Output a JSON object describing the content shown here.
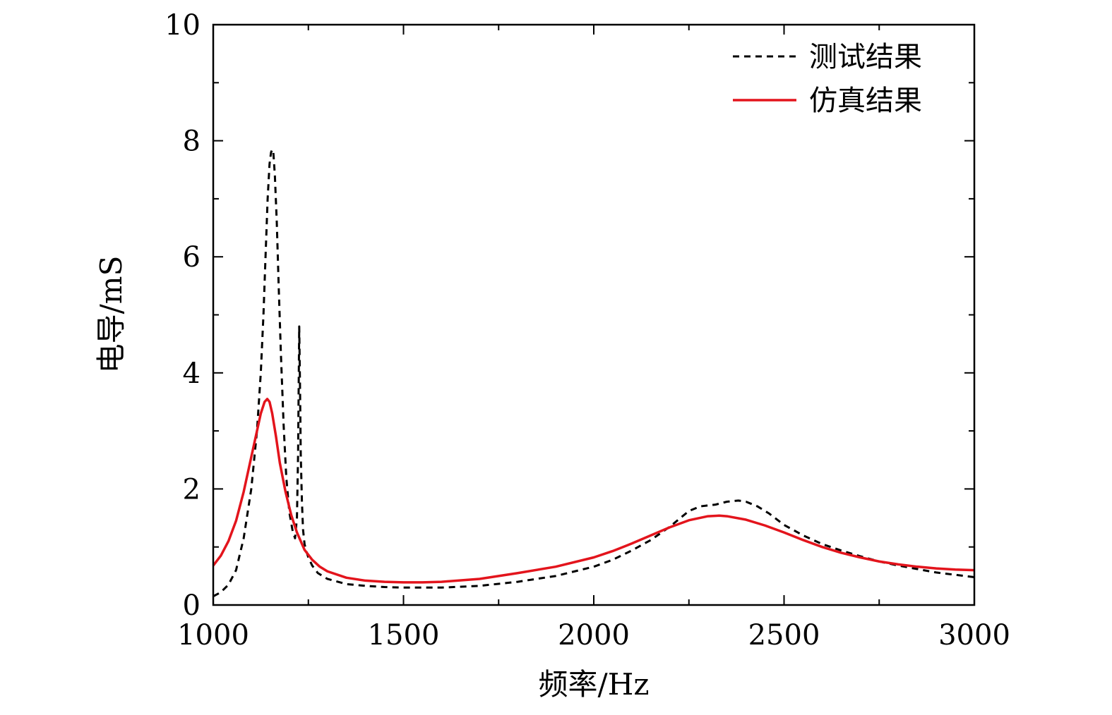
{
  "chart_data": {
    "type": "line",
    "title": "",
    "xlabel": "频率/Hz",
    "ylabel": "电导/mS",
    "xlim": [
      1000,
      3000
    ],
    "ylim": [
      0,
      10
    ],
    "grid": false,
    "legend_position": "top-right",
    "xticks": [
      1000,
      1500,
      2000,
      2500,
      3000
    ],
    "xtick_labels": [
      "1000",
      "1500",
      "2000",
      "2500",
      "3000"
    ],
    "xminor_ticks": [
      1250,
      1750,
      2250,
      2750
    ],
    "yticks": [
      0,
      2,
      4,
      6,
      8,
      10
    ],
    "ytick_labels": [
      "0",
      "2",
      "4",
      "6",
      "8",
      "10"
    ],
    "yminor_ticks": [
      1,
      3,
      5,
      7,
      9
    ],
    "series": [
      {
        "name": "测试结果",
        "style": "dashed",
        "color": "#000000",
        "x": [
          1000,
          1020,
          1040,
          1060,
          1080,
          1100,
          1115,
          1125,
          1132,
          1138,
          1143,
          1148,
          1152,
          1155,
          1158,
          1162,
          1167,
          1172,
          1178,
          1185,
          1192,
          1200,
          1208,
          1215,
          1220,
          1223,
          1226,
          1228,
          1230,
          1233,
          1236,
          1240,
          1245,
          1250,
          1260,
          1275,
          1300,
          1350,
          1400,
          1450,
          1500,
          1550,
          1600,
          1700,
          1800,
          1900,
          2000,
          2050,
          2100,
          2150,
          2200,
          2250,
          2280,
          2320,
          2350,
          2380,
          2400,
          2430,
          2460,
          2500,
          2550,
          2600,
          2650,
          2700,
          2750,
          2800,
          2850,
          2900,
          2950,
          3000
        ],
        "y": [
          0.15,
          0.22,
          0.35,
          0.6,
          1.15,
          2.0,
          3.0,
          4.0,
          5.0,
          6.1,
          7.0,
          7.6,
          7.8,
          7.85,
          7.8,
          7.4,
          6.6,
          5.5,
          4.3,
          3.1,
          2.2,
          1.6,
          1.3,
          1.15,
          1.5,
          2.6,
          4.8,
          3.8,
          2.6,
          1.8,
          1.3,
          1.05,
          0.92,
          0.82,
          0.68,
          0.55,
          0.45,
          0.36,
          0.33,
          0.31,
          0.3,
          0.3,
          0.3,
          0.33,
          0.4,
          0.5,
          0.66,
          0.78,
          0.94,
          1.12,
          1.35,
          1.62,
          1.7,
          1.73,
          1.78,
          1.8,
          1.78,
          1.7,
          1.58,
          1.38,
          1.2,
          1.05,
          0.94,
          0.84,
          0.75,
          0.68,
          0.62,
          0.56,
          0.52,
          0.48
        ]
      },
      {
        "name": "仿真结果",
        "style": "solid",
        "color": "#e3141c",
        "x": [
          1000,
          1020,
          1040,
          1060,
          1080,
          1100,
          1115,
          1125,
          1135,
          1142,
          1148,
          1155,
          1165,
          1175,
          1190,
          1205,
          1220,
          1240,
          1260,
          1280,
          1300,
          1350,
          1400,
          1450,
          1500,
          1550,
          1600,
          1700,
          1800,
          1900,
          2000,
          2050,
          2100,
          2150,
          2200,
          2250,
          2300,
          2330,
          2350,
          2400,
          2450,
          2500,
          2550,
          2600,
          2650,
          2700,
          2750,
          2800,
          2850,
          2900,
          2950,
          3000
        ],
        "y": [
          0.68,
          0.85,
          1.1,
          1.45,
          1.95,
          2.55,
          3.0,
          3.3,
          3.5,
          3.55,
          3.5,
          3.3,
          2.9,
          2.45,
          1.95,
          1.55,
          1.25,
          0.95,
          0.78,
          0.66,
          0.58,
          0.47,
          0.42,
          0.4,
          0.39,
          0.39,
          0.4,
          0.45,
          0.55,
          0.66,
          0.82,
          0.93,
          1.06,
          1.2,
          1.34,
          1.46,
          1.53,
          1.54,
          1.53,
          1.47,
          1.37,
          1.25,
          1.12,
          1.0,
          0.9,
          0.82,
          0.75,
          0.7,
          0.66,
          0.63,
          0.61,
          0.6
        ]
      }
    ]
  }
}
